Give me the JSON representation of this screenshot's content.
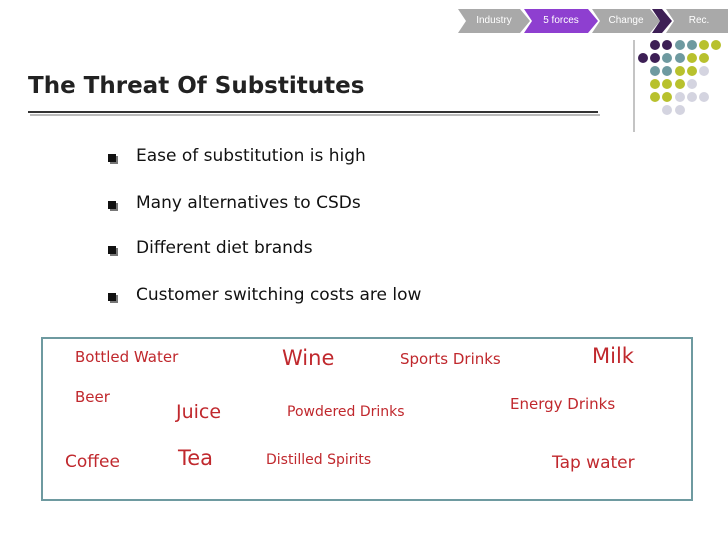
{
  "nav": {
    "tabs": [
      "Industry",
      "5 forces",
      "Change",
      "Rec."
    ]
  },
  "title": "The Threat Of Substitutes",
  "bullets": [
    "Ease of substitution is high",
    "Many alternatives to CSDs",
    "Different diet brands",
    "Customer switching costs are low"
  ],
  "substitutes": [
    "Bottled Water",
    "Wine",
    "Sports Drinks",
    "Milk",
    "Beer",
    "Juice",
    "Powdered Drinks",
    "Energy Drinks",
    "Coffee",
    "Tea",
    "Distilled Spirits",
    "Tap water"
  ]
}
